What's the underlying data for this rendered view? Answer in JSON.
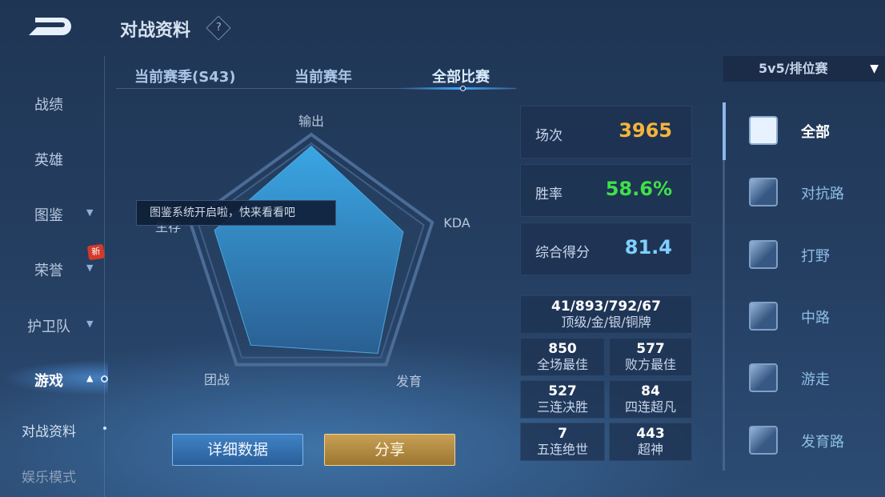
{
  "header": {
    "title": "对战资料",
    "help_icon": "?"
  },
  "tabs": [
    {
      "label": "当前赛季(S43)"
    },
    {
      "label": "当前赛年"
    },
    {
      "label": "全部比赛",
      "active": true
    }
  ],
  "nav": [
    {
      "label": "战绩"
    },
    {
      "label": "英雄"
    },
    {
      "label": "图鉴",
      "chevron": "down"
    },
    {
      "label": "荣誉",
      "chevron": "down",
      "badge": "新"
    },
    {
      "label": "护卫队",
      "chevron": "down"
    },
    {
      "label": "游戏",
      "chevron": "up",
      "active": true
    },
    {
      "label": "对战资料"
    },
    {
      "label": "娱乐模式"
    }
  ],
  "tooltip": "图鉴系统开启啦，快来看看吧",
  "chart_data": {
    "type": "radar",
    "axes": [
      "输出",
      "KDA",
      "发育",
      "团战",
      "生存"
    ],
    "values": [
      0.91,
      0.76,
      0.89,
      0.81,
      0.8
    ],
    "range": [
      0,
      1
    ],
    "fill_color": "#3a9bd8"
  },
  "stats": [
    {
      "label": "场次",
      "value": "3965",
      "color": "#f5b53a"
    },
    {
      "label": "胜率",
      "value": "58.6%",
      "color": "#3ee04a"
    },
    {
      "label": "综合得分",
      "value": "81.4",
      "color": "#7fd0ff"
    }
  ],
  "medals": {
    "value": "41/893/792/67",
    "label": "顶级/金/银/铜牌"
  },
  "cells": [
    {
      "value": "850",
      "label": "全场最佳"
    },
    {
      "value": "577",
      "label": "败方最佳"
    },
    {
      "value": "527",
      "label": "三连决胜"
    },
    {
      "value": "84",
      "label": "四连超凡"
    },
    {
      "value": "7",
      "label": "五连绝世"
    },
    {
      "value": "443",
      "label": "超神"
    }
  ],
  "buttons": {
    "detail": "详细数据",
    "share": "分享"
  },
  "mode": {
    "label": "5v5/排位赛",
    "icon": "filter-icon"
  },
  "roles": [
    {
      "label": "全部",
      "selected": true
    },
    {
      "label": "对抗路"
    },
    {
      "label": "打野"
    },
    {
      "label": "中路"
    },
    {
      "label": "游走"
    },
    {
      "label": "发育路"
    }
  ]
}
